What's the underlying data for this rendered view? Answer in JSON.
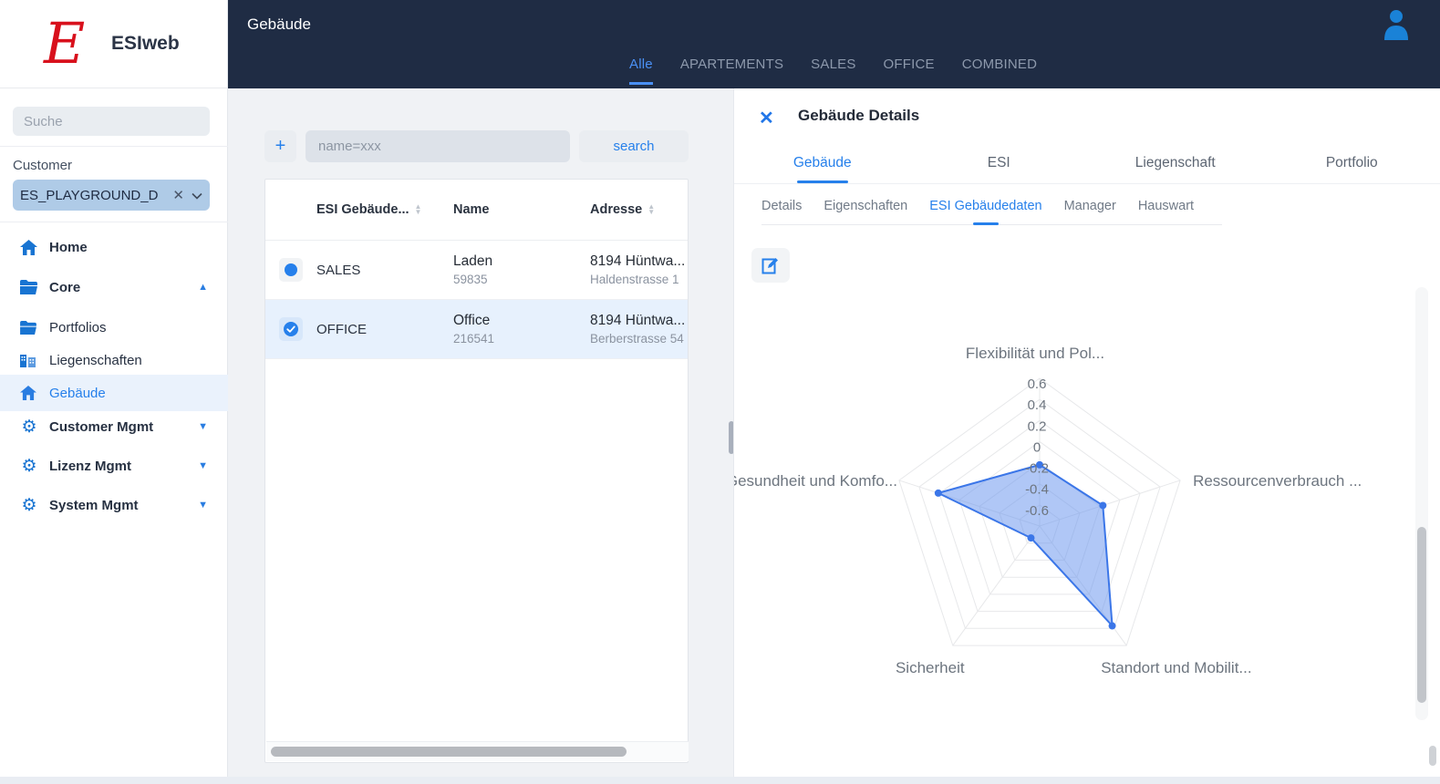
{
  "app": {
    "logo_letter": "E",
    "logo_name": "ESIweb"
  },
  "topbar": {
    "title": "Gebäude",
    "tabs": [
      {
        "label": "Alle"
      },
      {
        "label": "APARTEMENTS"
      },
      {
        "label": "SALES"
      },
      {
        "label": "OFFICE"
      },
      {
        "label": "COMBINED"
      }
    ],
    "active_tab": "Alle"
  },
  "sidebar": {
    "search_placeholder": "Suche",
    "customer_label": "Customer",
    "customer_value": "ES_PLAYGROUND_D",
    "items": [
      {
        "label": "Home",
        "icon": "home"
      },
      {
        "label": "Core",
        "icon": "folder",
        "expanded": true
      },
      {
        "label": "Portfolios",
        "icon": "folder"
      },
      {
        "label": "Liegenschaften",
        "icon": "buildings"
      },
      {
        "label": "Gebäude",
        "icon": "home",
        "active": true
      },
      {
        "label": "Customer Mgmt",
        "icon": "gear",
        "collapsed": true
      },
      {
        "label": "Lizenz Mgmt",
        "icon": "gear",
        "collapsed": true
      },
      {
        "label": "System Mgmt",
        "icon": "gear",
        "collapsed": true
      }
    ]
  },
  "listpanel": {
    "add_label": "+",
    "filter_placeholder": "name=xxx",
    "search_label": "search",
    "table": {
      "columns": {
        "type": "ESI Gebäude...",
        "name": "Name",
        "address": "Adresse"
      },
      "rows": [
        {
          "type": "SALES",
          "name": "Laden",
          "number": "59835",
          "city": "8194 Hüntwa...",
          "street": "Haldenstrasse 1",
          "selected": false
        },
        {
          "type": "OFFICE",
          "name": "Office",
          "number": "216541",
          "city": "8194 Hüntwa...",
          "street": "Berberstrasse 54",
          "selected": true
        }
      ]
    }
  },
  "details": {
    "close_label": "✕",
    "title": "Gebäude Details",
    "tabs": [
      {
        "label": "Gebäude"
      },
      {
        "label": "ESI"
      },
      {
        "label": "Liegenschaft"
      },
      {
        "label": "Portfolio"
      }
    ],
    "active_tab": "Gebäude",
    "subtabs": [
      {
        "label": "Details"
      },
      {
        "label": "Eigenschaften"
      },
      {
        "label": "ESI Gebäudedaten"
      },
      {
        "label": "Manager"
      },
      {
        "label": "Hauswart"
      }
    ],
    "active_subtab": "ESI Gebäudedaten"
  },
  "chart_data": {
    "type": "radar",
    "categories": [
      "Flexibilität und Pol...",
      "Ressourcenverbrauch ...",
      "Standort und Mobilit...",
      "Sicherheit",
      "Gesundheit und Komfo..."
    ],
    "values": [
      -0.22,
      -0.17,
      0.37,
      -0.66,
      0.21
    ],
    "axis_min": -0.8,
    "axis_max": 0.6,
    "ticks": [
      "0.6",
      "0.4",
      "0.2",
      "0",
      "-0.2",
      "-0.4",
      "-0.6"
    ],
    "tick_values": [
      0.6,
      0.4,
      0.2,
      0,
      -0.2,
      -0.4,
      -0.6
    ],
    "line_color": "#3b76e8",
    "fill_color": "rgba(98,143,238,0.5)",
    "grid_color": "#e7e8ea",
    "label_color": "#6d757f",
    "legend": "none",
    "title": ""
  }
}
